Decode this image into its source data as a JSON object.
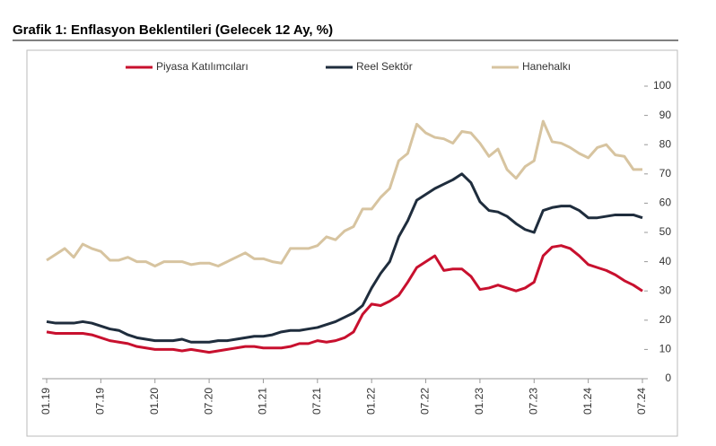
{
  "chart_data": {
    "type": "line",
    "title": "Grafik 1: Enflasyon Beklentileri (Gelecek 12 Ay, %)",
    "categories": [
      "01.19",
      null,
      null,
      null,
      null,
      null,
      "07.19",
      null,
      null,
      null,
      null,
      null,
      "01.20",
      null,
      null,
      null,
      null,
      null,
      "07.20",
      null,
      null,
      null,
      null,
      null,
      "01.21",
      null,
      null,
      null,
      null,
      null,
      "07.21",
      null,
      null,
      null,
      null,
      null,
      "01.22",
      null,
      null,
      null,
      null,
      null,
      "07.22",
      null,
      null,
      null,
      null,
      null,
      "01.23",
      null,
      null,
      null,
      null,
      null,
      "07.23",
      null,
      null,
      null,
      null,
      null,
      "01.24",
      null,
      null,
      null,
      null,
      null,
      "07.24"
    ],
    "series": [
      {
        "name": "Piyasa Katılımcıları",
        "color": "#c8102e",
        "values": [
          16,
          15.5,
          15.5,
          15.5,
          15.5,
          15,
          14,
          13,
          12.5,
          12,
          11,
          10.5,
          10,
          10,
          10,
          9.5,
          10,
          9.5,
          9,
          9.5,
          10,
          10.5,
          11,
          11,
          10.5,
          10.5,
          10.5,
          11,
          12,
          12,
          13,
          12.5,
          13,
          14,
          16,
          22,
          25.5,
          25,
          26.5,
          28.5,
          33,
          38,
          40,
          42,
          37,
          37.5,
          37.5,
          35,
          30.5,
          31,
          32,
          31,
          30,
          31,
          33,
          42,
          45,
          45.5,
          44.5,
          42,
          39,
          38,
          37,
          35.5,
          33.5,
          32,
          30
        ]
      },
      {
        "name": "Reel Sektör",
        "color": "#1f2d3d",
        "values": [
          19.5,
          19,
          19,
          19,
          19.5,
          19,
          18,
          17,
          16.5,
          15,
          14,
          13.5,
          13,
          13,
          13,
          13.5,
          12.5,
          12.5,
          12.5,
          13,
          13,
          13.5,
          14,
          14.5,
          14.5,
          15,
          16,
          16.5,
          16.5,
          17,
          17.5,
          18.5,
          19.5,
          21,
          22.5,
          25,
          31,
          36,
          40,
          48.5,
          54,
          61,
          63,
          65,
          66.5,
          68,
          70,
          67,
          60.5,
          57.5,
          57,
          55.5,
          53,
          51,
          50,
          57.5,
          58.5,
          59,
          59,
          57.5,
          55,
          55,
          55.5,
          56,
          56,
          56,
          55
        ]
      },
      {
        "name": "Hanehalkı",
        "color": "#d7c4a0",
        "values": [
          40.5,
          42.5,
          44.5,
          41.5,
          46,
          44.5,
          43.5,
          40.5,
          40.5,
          41.5,
          40,
          40,
          38.5,
          40,
          40,
          40,
          39,
          39.5,
          39.5,
          38.5,
          40,
          41.5,
          43,
          41,
          41,
          40,
          39.5,
          44.5,
          44.5,
          44.5,
          45.5,
          48.5,
          47.5,
          50.5,
          52,
          58,
          58,
          62,
          65,
          74.5,
          77,
          87,
          84,
          82.5,
          82,
          80.5,
          84.5,
          84,
          80.5,
          76,
          78.5,
          71.5,
          68.5,
          72.5,
          74.5,
          88,
          81,
          80.5,
          79,
          77,
          75.5,
          79,
          80,
          76.5,
          76,
          71.5,
          71.5
        ]
      }
    ],
    "ylim": [
      0,
      100
    ],
    "yticks": [
      0,
      10,
      20,
      30,
      40,
      50,
      60,
      70,
      80,
      90,
      100
    ],
    "grid": false
  }
}
